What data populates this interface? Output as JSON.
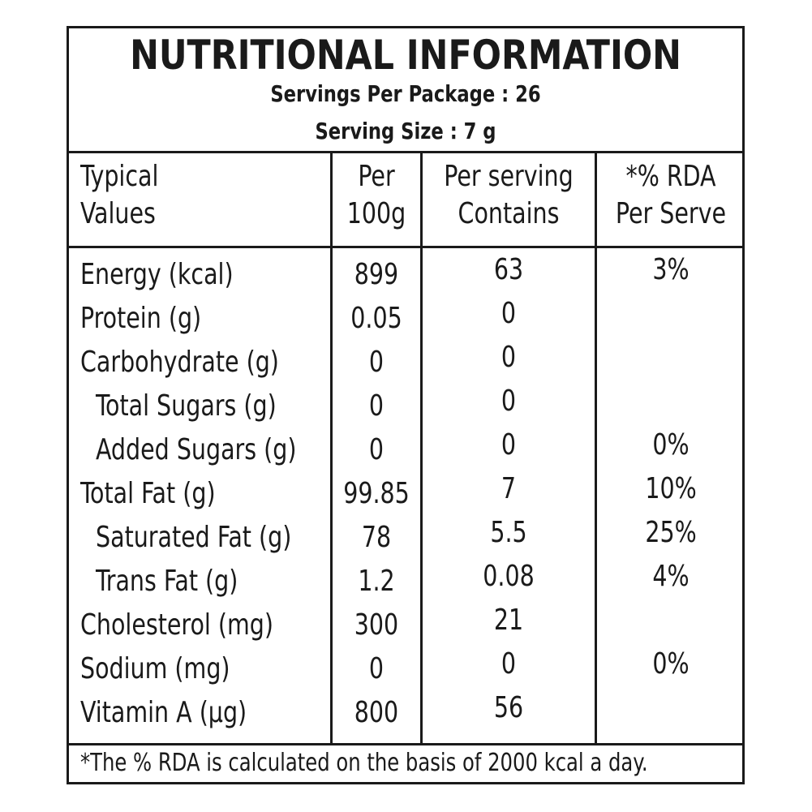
{
  "title": "NUTRITIONAL INFORMATION",
  "servings_per_package": "Servings Per Package : 26",
  "serving_size": "Serving Size : 7 g",
  "headers": {
    "col1_line1": "Typical",
    "col1_line2": "Values",
    "col2_line1": "Per",
    "col2_line2": "100g",
    "col3_line1": "Per serving",
    "col3_line2": "Contains",
    "col4_line1": "*% RDA",
    "col4_line2": "Per Serve"
  },
  "rows": [
    {
      "name": "Energy (kcal)",
      "per100": "899",
      "serving": "63",
      "rda": "3%"
    },
    {
      "name": "Protein (g)",
      "per100": "0.05",
      "serving": "0",
      "rda": ""
    },
    {
      "name": "Carbohydrate (g)",
      "per100": "0",
      "serving": "0",
      "rda": ""
    },
    {
      "name": "Total Sugars (g)",
      "per100": "0",
      "serving": "0",
      "rda": ""
    },
    {
      "name": "Added Sugars (g)",
      "per100": "0",
      "serving": "0",
      "rda": "0%"
    },
    {
      "name": "Total Fat (g)",
      "per100": "99.85",
      "serving": "7",
      "rda": "10%"
    },
    {
      "name": "Saturated Fat (g)",
      "per100": "78",
      "serving": "5.5",
      "rda": "25%"
    },
    {
      "name": "Trans Fat (g)",
      "per100": "1.2",
      "serving": "0.08",
      "rda": "4%"
    },
    {
      "name": "Cholesterol (mg)",
      "per100": "300",
      "serving": "21",
      "rda": ""
    },
    {
      "name": "Sodium (mg)",
      "per100": "0",
      "serving": "0",
      "rda": "0%"
    },
    {
      "name": "Vitamin A (µg)",
      "per100": "800",
      "serving": "56",
      "rda": ""
    }
  ],
  "footnote": "*The % RDA is calculated on the basis of 2000 kcal a day."
}
